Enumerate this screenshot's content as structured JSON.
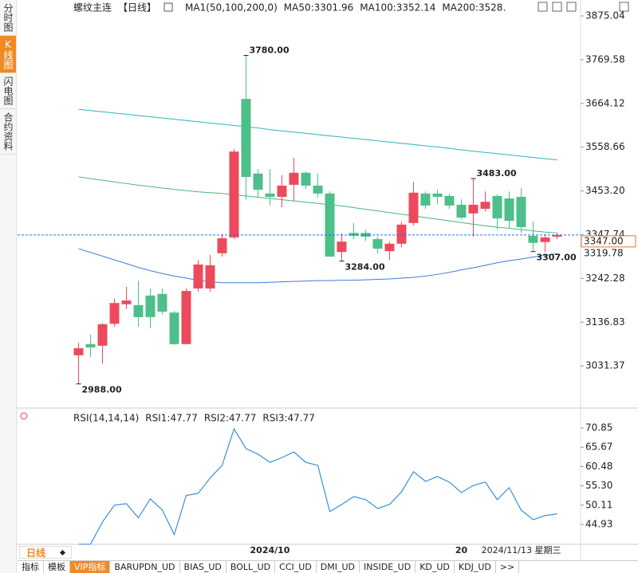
{
  "ui": {
    "sidebar": [
      "分时图",
      "K线图",
      "闪电图",
      "合约资料"
    ],
    "sidebar_active": 1,
    "period_button": "日线",
    "bottom_tabs": [
      "指标",
      "模板",
      "VIP指标",
      "BARUPDN_UD",
      "BIAS_UD",
      "BOLL_UD",
      "CCI_UD",
      "DMI_UD",
      "INSIDE_UD",
      "KD_UD",
      "KDJ_UD",
      ">>"
    ],
    "bottom_active": 2
  },
  "chart_data": [
    {
      "type": "candlestick",
      "symbol": "螺纹主连",
      "period": "【日线】",
      "indicator": "MA1(50,100,200,0)",
      "categories": [
        null,
        null,
        null,
        null,
        null,
        null,
        null,
        null,
        null,
        null,
        null,
        null,
        null,
        null,
        null,
        null,
        "2024/10",
        null,
        null,
        null,
        null,
        null,
        null,
        null,
        null,
        null,
        null,
        null,
        null,
        null,
        null,
        null,
        "20",
        null,
        null,
        null,
        null,
        null,
        null,
        null,
        null
      ],
      "cursor_label": "2024/11/13 星期三",
      "open": [
        3057,
        3084,
        3080,
        3133,
        3180,
        3178,
        3201,
        3205,
        3160,
        3084,
        3218,
        3218,
        3303,
        3341,
        3675,
        3495,
        3447,
        3439,
        3468,
        3497,
        3466,
        3447,
        3306,
        3352,
        3352,
        3337,
        3308,
        3326,
        3376,
        3447,
        3447,
        3441,
        3420,
        3399,
        3410,
        3441,
        3435,
        3439,
        3345,
        3330,
        3343
      ],
      "high": [
        3087,
        3107,
        3135,
        3193,
        3222,
        3237,
        3218,
        3218,
        3164,
        3218,
        3287,
        3299,
        3349,
        3554,
        3780,
        3506,
        3506,
        3491,
        3533,
        3500,
        3495,
        3452,
        3351,
        3376,
        3360,
        3343,
        3331,
        3379,
        3475,
        3452,
        3456,
        3447,
        3433,
        3483,
        3452,
        3445,
        3452,
        3460,
        3379,
        3349,
        3352
      ],
      "low": [
        2988,
        3053,
        3037,
        3126,
        3168,
        3126,
        3122,
        3155,
        3082,
        3084,
        3210,
        3210,
        3295,
        3337,
        3433,
        3439,
        3418,
        3414,
        3429,
        3458,
        3437,
        3295,
        3284,
        3337,
        3333,
        3303,
        3287,
        3318,
        3370,
        3410,
        3422,
        3410,
        3385,
        3343,
        3404,
        3360,
        3362,
        3352,
        3307,
        3306,
        3337
      ],
      "close": [
        3074,
        3076,
        3132,
        3183,
        3189,
        3149,
        3149,
        3162,
        3084,
        3212,
        3276,
        3274,
        3339,
        3548,
        3487,
        3456,
        3439,
        3466,
        3497,
        3466,
        3447,
        3295,
        3331,
        3345,
        3343,
        3314,
        3326,
        3372,
        3449,
        3418,
        3439,
        3418,
        3389,
        3420,
        3427,
        3387,
        3381,
        3366,
        3328,
        3341,
        3347
      ],
      "up_color": "#ec4a5c",
      "down_color": "#4dbf8a",
      "series": [
        {
          "name": "MA50:3301.96",
          "color": "#3a7fd5",
          "values": [
            3314,
            3305,
            3296,
            3287,
            3278,
            3269,
            3261,
            3254,
            3248,
            3243,
            3238,
            3234,
            3232,
            3232,
            3232,
            3232,
            3233,
            3234,
            3235,
            3236,
            3237,
            3237,
            3238,
            3238,
            3239,
            3240,
            3241,
            3243,
            3245,
            3248,
            3252,
            3257,
            3263,
            3268,
            3274,
            3280,
            3285,
            3289,
            3294,
            3298,
            3301.96
          ]
        },
        {
          "name": "MA100:3352.14",
          "color": "#45b97a",
          "values": [
            3487,
            3483,
            3479,
            3475,
            3471,
            3467,
            3464,
            3460,
            3457,
            3454,
            3451,
            3449,
            3447,
            3444,
            3441,
            3438,
            3435,
            3432,
            3429,
            3426,
            3423,
            3420,
            3417,
            3413,
            3409,
            3405,
            3401,
            3397,
            3393,
            3389,
            3385,
            3381,
            3377,
            3373,
            3369,
            3366,
            3363,
            3360,
            3357,
            3354,
            3352.14
          ]
        },
        {
          "name": "MA200:3528.",
          "color": "#2eb3b8",
          "values": [
            3650,
            3647,
            3644,
            3641,
            3638,
            3635,
            3632,
            3629,
            3626,
            3623,
            3620,
            3617,
            3614,
            3611,
            3608,
            3605,
            3601,
            3598,
            3595,
            3592,
            3589,
            3586,
            3583,
            3580,
            3577,
            3574,
            3571,
            3568,
            3565,
            3562,
            3559,
            3556,
            3552,
            3549,
            3546,
            3543,
            3540,
            3537,
            3534,
            3531,
            3528
          ]
        }
      ],
      "ylim": [
        2933.7,
        3875.04
      ],
      "yticks": [
        3875.04,
        3769.58,
        3664.12,
        3558.66,
        {
          "value": 3453.2,
          "label": "3453.20"
        },
        3347.74,
        3242.28,
        3136.83,
        3031.37
      ],
      "extreme_labels": [
        {
          "value": 3780,
          "label": "3780.00"
        },
        {
          "value": 2988,
          "label": "2988.00"
        },
        {
          "value": 3284,
          "label": "3284.00"
        },
        {
          "value": 3483,
          "label": "3483.00"
        },
        {
          "value": 3307,
          "label": "3307.00"
        }
      ],
      "price_tags": [
        {
          "value": 3347,
          "label": "3347.00",
          "color": "#e0782a"
        },
        {
          "value": 3319.78,
          "label": "3319.78",
          "color": "#e0782a"
        }
      ],
      "last_price_line": true
    },
    {
      "type": "line",
      "indicator": "RSI(14,14,14)",
      "series": [
        {
          "name": "RSI1:47.77",
          "color": "#3a8fd8",
          "values": [
            39.6,
            39.6,
            45.6,
            50.1,
            50.5,
            46.7,
            51.8,
            48.8,
            42.2,
            52.7,
            53.3,
            57.4,
            60.8,
            70.6,
            65.3,
            63.8,
            61.6,
            62.9,
            64.4,
            61.6,
            60.8,
            48.4,
            50.3,
            52.4,
            51.6,
            49.2,
            50.3,
            53.7,
            59.1,
            56.5,
            57.8,
            56.3,
            53.5,
            55.4,
            56.3,
            51.6,
            54.8,
            48.8,
            46.2,
            47.3,
            47.77
          ]
        }
      ],
      "legend_entries": [
        {
          "name": "RSI2:47.77",
          "color": "#45b97a"
        },
        {
          "name": "RSI3:47.77",
          "color": "#2eb3b8"
        }
      ],
      "ylim": [
        39.37,
        72.78
      ],
      "yticks": [
        70.85,
        65.67,
        60.48,
        {
          "value": 55.3,
          "label": "55.30"
        },
        50.11,
        44.93
      ]
    }
  ]
}
